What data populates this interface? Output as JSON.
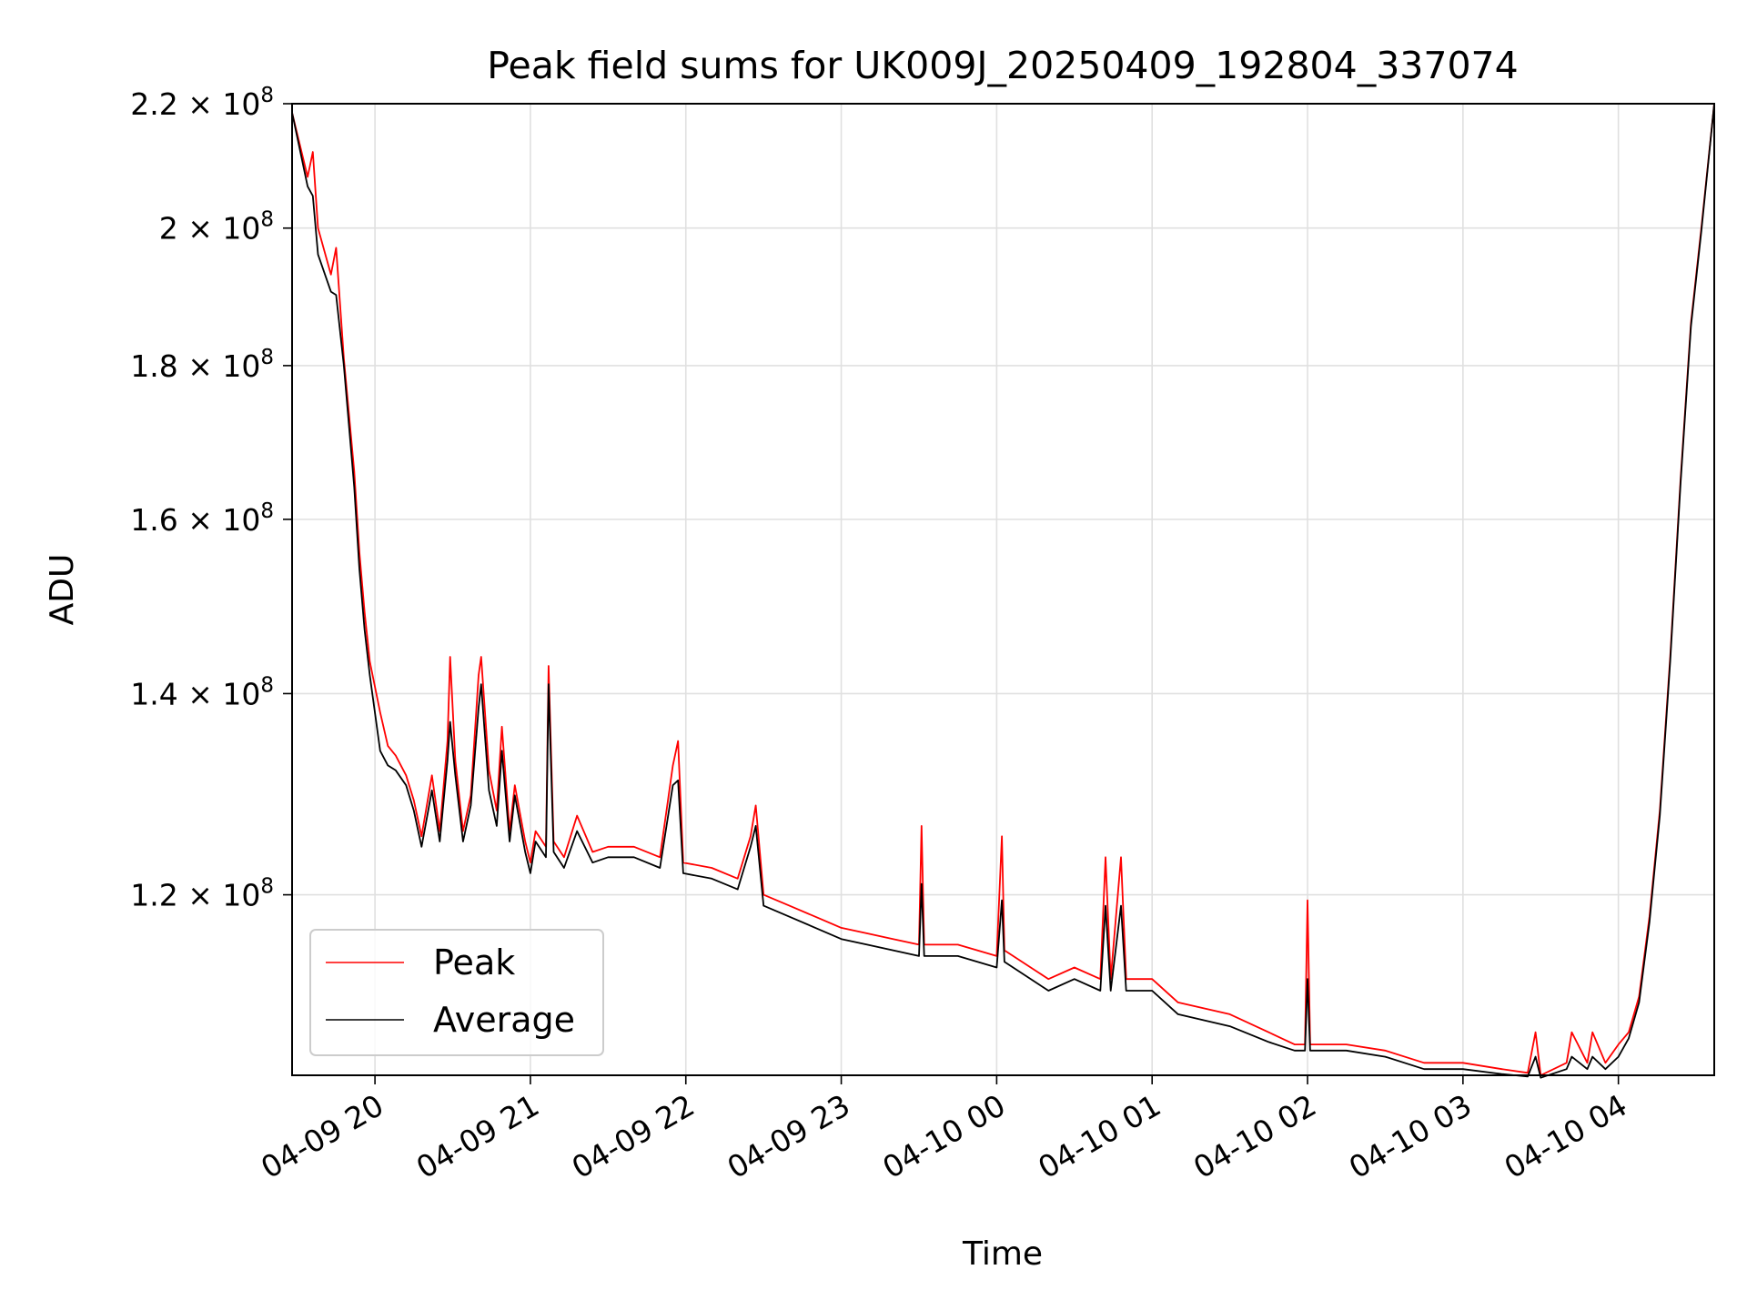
{
  "chart_data": {
    "type": "line",
    "title": "Peak field sums for UK009J_20250409_192804_337074",
    "xlabel": "Time",
    "ylabel": "ADU",
    "yscale": "log",
    "grid": true,
    "legend_position": "lower-left",
    "xlim": [
      "2025-04-09 19:28",
      "2025-04-10 04:37"
    ],
    "ylim": [
      104500000,
      220000000
    ],
    "x_ticks": [
      {
        "t": "2025-04-09 20:00",
        "label": "04-09 20"
      },
      {
        "t": "2025-04-09 21:00",
        "label": "04-09 21"
      },
      {
        "t": "2025-04-09 22:00",
        "label": "04-09 22"
      },
      {
        "t": "2025-04-09 23:00",
        "label": "04-09 23"
      },
      {
        "t": "2025-04-10 00:00",
        "label": "04-10 00"
      },
      {
        "t": "2025-04-10 01:00",
        "label": "04-10 01"
      },
      {
        "t": "2025-04-10 02:00",
        "label": "04-10 02"
      },
      {
        "t": "2025-04-10 03:00",
        "label": "04-10 03"
      },
      {
        "t": "2025-04-10 04:00",
        "label": "04-10 04"
      }
    ],
    "y_ticks": [
      {
        "v": 120000000,
        "mant": "1.2",
        "exp": "8"
      },
      {
        "v": 140000000,
        "mant": "1.4",
        "exp": "8"
      },
      {
        "v": 160000000,
        "mant": "1.6",
        "exp": "8"
      },
      {
        "v": 180000000,
        "mant": "1.8",
        "exp": "8"
      },
      {
        "v": 200000000,
        "mant": "2",
        "exp": "8"
      },
      {
        "v": 220000000,
        "mant": "2.2",
        "exp": "8"
      }
    ],
    "series": [
      {
        "name": "Peak",
        "color": "#ff0000",
        "points": [
          [
            "2025-04-09 19:28",
            218500000
          ],
          [
            "2025-04-09 19:34",
            208000000
          ],
          [
            "2025-04-09 19:36",
            212000000
          ],
          [
            "2025-04-09 19:38",
            200000000
          ],
          [
            "2025-04-09 19:43",
            193000000
          ],
          [
            "2025-04-09 19:45",
            197000000
          ],
          [
            "2025-04-09 19:48",
            181000000
          ],
          [
            "2025-04-09 19:52",
            166000000
          ],
          [
            "2025-04-09 19:54",
            156000000
          ],
          [
            "2025-04-09 19:56",
            149000000
          ],
          [
            "2025-04-09 19:58",
            143500000
          ],
          [
            "2025-04-09 20:02",
            138000000
          ],
          [
            "2025-04-09 20:05",
            134500000
          ],
          [
            "2025-04-09 20:08",
            133500000
          ],
          [
            "2025-04-09 20:12",
            131500000
          ],
          [
            "2025-04-09 20:15",
            129000000
          ],
          [
            "2025-04-09 20:18",
            125500000
          ],
          [
            "2025-04-09 20:22",
            131500000
          ],
          [
            "2025-04-09 20:25",
            126000000
          ],
          [
            "2025-04-09 20:28",
            135000000
          ],
          [
            "2025-04-09 20:29",
            144000000
          ],
          [
            "2025-04-09 20:31",
            133000000
          ],
          [
            "2025-04-09 20:34",
            126000000
          ],
          [
            "2025-04-09 20:37",
            129500000
          ],
          [
            "2025-04-09 20:40",
            142000000
          ],
          [
            "2025-04-09 20:41",
            144000000
          ],
          [
            "2025-04-09 20:44",
            132000000
          ],
          [
            "2025-04-09 20:47",
            128000000
          ],
          [
            "2025-04-09 20:49",
            136500000
          ],
          [
            "2025-04-09 20:52",
            126000000
          ],
          [
            "2025-04-09 20:54",
            130500000
          ],
          [
            "2025-04-09 20:58",
            125000000
          ],
          [
            "2025-04-09 21:00",
            123000000
          ],
          [
            "2025-04-09 21:02",
            126000000
          ],
          [
            "2025-04-09 21:06",
            124500000
          ],
          [
            "2025-04-09 21:07",
            143000000
          ],
          [
            "2025-04-09 21:09",
            125000000
          ],
          [
            "2025-04-09 21:13",
            123500000
          ],
          [
            "2025-04-09 21:18",
            127500000
          ],
          [
            "2025-04-09 21:24",
            124000000
          ],
          [
            "2025-04-09 21:30",
            124500000
          ],
          [
            "2025-04-09 21:40",
            124500000
          ],
          [
            "2025-04-09 21:50",
            123500000
          ],
          [
            "2025-04-09 21:55",
            132500000
          ],
          [
            "2025-04-09 21:57",
            135000000
          ],
          [
            "2025-04-09 21:59",
            123000000
          ],
          [
            "2025-04-09 22:10",
            122500000
          ],
          [
            "2025-04-09 22:20",
            121500000
          ],
          [
            "2025-04-09 22:25",
            125500000
          ],
          [
            "2025-04-09 22:27",
            128500000
          ],
          [
            "2025-04-09 22:30",
            120000000
          ],
          [
            "2025-04-09 22:40",
            119000000
          ],
          [
            "2025-04-09 22:50",
            118000000
          ],
          [
            "2025-04-09 23:00",
            117000000
          ],
          [
            "2025-04-09 23:10",
            116500000
          ],
          [
            "2025-04-09 23:20",
            116000000
          ],
          [
            "2025-04-09 23:30",
            115500000
          ],
          [
            "2025-04-09 23:31",
            126500000
          ],
          [
            "2025-04-09 23:32",
            115500000
          ],
          [
            "2025-04-09 23:45",
            115500000
          ],
          [
            "2025-04-10 00:00",
            114500000
          ],
          [
            "2025-04-10 00:02",
            125500000
          ],
          [
            "2025-04-10 00:03",
            115000000
          ],
          [
            "2025-04-10 00:20",
            112500000
          ],
          [
            "2025-04-10 00:30",
            113500000
          ],
          [
            "2025-04-10 00:40",
            112500000
          ],
          [
            "2025-04-10 00:42",
            123500000
          ],
          [
            "2025-04-10 00:44",
            112500000
          ],
          [
            "2025-04-10 00:48",
            123500000
          ],
          [
            "2025-04-10 00:50",
            112500000
          ],
          [
            "2025-04-10 01:00",
            112500000
          ],
          [
            "2025-04-10 01:10",
            110500000
          ],
          [
            "2025-04-10 01:20",
            110000000
          ],
          [
            "2025-04-10 01:30",
            109500000
          ],
          [
            "2025-04-10 01:45",
            108000000
          ],
          [
            "2025-04-10 01:55",
            107000000
          ],
          [
            "2025-04-10 01:59",
            107000000
          ],
          [
            "2025-04-10 02:00",
            119500000
          ],
          [
            "2025-04-10 02:01",
            107000000
          ],
          [
            "2025-04-10 02:15",
            107000000
          ],
          [
            "2025-04-10 02:30",
            106500000
          ],
          [
            "2025-04-10 02:45",
            105500000
          ],
          [
            "2025-04-10 03:00",
            105500000
          ],
          [
            "2025-04-10 03:15",
            105000000
          ],
          [
            "2025-04-10 03:25",
            104700000
          ],
          [
            "2025-04-10 03:28",
            108000000
          ],
          [
            "2025-04-10 03:30",
            104500000
          ],
          [
            "2025-04-10 03:40",
            105500000
          ],
          [
            "2025-04-10 03:42",
            108000000
          ],
          [
            "2025-04-10 03:48",
            105500000
          ],
          [
            "2025-04-10 03:50",
            108000000
          ],
          [
            "2025-04-10 03:55",
            105500000
          ],
          [
            "2025-04-10 04:00",
            107000000
          ],
          [
            "2025-04-10 04:04",
            108000000
          ],
          [
            "2025-04-10 04:08",
            111000000
          ],
          [
            "2025-04-10 04:12",
            118000000
          ],
          [
            "2025-04-10 04:16",
            128000000
          ],
          [
            "2025-04-10 04:20",
            144000000
          ],
          [
            "2025-04-10 04:24",
            165000000
          ],
          [
            "2025-04-10 04:28",
            186000000
          ],
          [
            "2025-04-10 04:32",
            200000000
          ],
          [
            "2025-04-10 04:37",
            220000000
          ]
        ]
      },
      {
        "name": "Average",
        "color": "#000000",
        "points": [
          [
            "2025-04-09 19:28",
            218500000
          ],
          [
            "2025-04-09 19:34",
            206500000
          ],
          [
            "2025-04-09 19:36",
            205000000
          ],
          [
            "2025-04-09 19:38",
            196000000
          ],
          [
            "2025-04-09 19:43",
            190500000
          ],
          [
            "2025-04-09 19:45",
            190000000
          ],
          [
            "2025-04-09 19:48",
            180000000
          ],
          [
            "2025-04-09 19:52",
            164000000
          ],
          [
            "2025-04-09 19:54",
            154000000
          ],
          [
            "2025-04-09 19:56",
            147000000
          ],
          [
            "2025-04-09 19:58",
            142000000
          ],
          [
            "2025-04-09 20:02",
            134000000
          ],
          [
            "2025-04-09 20:05",
            132500000
          ],
          [
            "2025-04-09 20:08",
            132000000
          ],
          [
            "2025-04-09 20:12",
            130500000
          ],
          [
            "2025-04-09 20:15",
            128000000
          ],
          [
            "2025-04-09 20:18",
            124500000
          ],
          [
            "2025-04-09 20:22",
            130000000
          ],
          [
            "2025-04-09 20:25",
            125000000
          ],
          [
            "2025-04-09 20:28",
            133000000
          ],
          [
            "2025-04-09 20:29",
            137000000
          ],
          [
            "2025-04-09 20:31",
            131500000
          ],
          [
            "2025-04-09 20:34",
            125000000
          ],
          [
            "2025-04-09 20:37",
            128500000
          ],
          [
            "2025-04-09 20:40",
            138500000
          ],
          [
            "2025-04-09 20:41",
            141000000
          ],
          [
            "2025-04-09 20:44",
            130000000
          ],
          [
            "2025-04-09 20:47",
            126500000
          ],
          [
            "2025-04-09 20:49",
            134000000
          ],
          [
            "2025-04-09 20:52",
            125000000
          ],
          [
            "2025-04-09 20:54",
            129500000
          ],
          [
            "2025-04-09 20:58",
            124000000
          ],
          [
            "2025-04-09 21:00",
            122000000
          ],
          [
            "2025-04-09 21:02",
            125000000
          ],
          [
            "2025-04-09 21:06",
            123500000
          ],
          [
            "2025-04-09 21:07",
            141000000
          ],
          [
            "2025-04-09 21:09",
            124000000
          ],
          [
            "2025-04-09 21:13",
            122500000
          ],
          [
            "2025-04-09 21:18",
            126000000
          ],
          [
            "2025-04-09 21:24",
            123000000
          ],
          [
            "2025-04-09 21:30",
            123500000
          ],
          [
            "2025-04-09 21:40",
            123500000
          ],
          [
            "2025-04-09 21:50",
            122500000
          ],
          [
            "2025-04-09 21:55",
            130500000
          ],
          [
            "2025-04-09 21:57",
            131000000
          ],
          [
            "2025-04-09 21:59",
            122000000
          ],
          [
            "2025-04-09 22:10",
            121500000
          ],
          [
            "2025-04-09 22:20",
            120500000
          ],
          [
            "2025-04-09 22:25",
            124500000
          ],
          [
            "2025-04-09 22:27",
            126500000
          ],
          [
            "2025-04-09 22:30",
            119000000
          ],
          [
            "2025-04-09 22:40",
            118000000
          ],
          [
            "2025-04-09 22:50",
            117000000
          ],
          [
            "2025-04-09 23:00",
            116000000
          ],
          [
            "2025-04-09 23:10",
            115500000
          ],
          [
            "2025-04-09 23:20",
            115000000
          ],
          [
            "2025-04-09 23:30",
            114500000
          ],
          [
            "2025-04-09 23:31",
            121000000
          ],
          [
            "2025-04-09 23:32",
            114500000
          ],
          [
            "2025-04-09 23:45",
            114500000
          ],
          [
            "2025-04-10 00:00",
            113500000
          ],
          [
            "2025-04-10 00:02",
            119500000
          ],
          [
            "2025-04-10 00:03",
            114000000
          ],
          [
            "2025-04-10 00:20",
            111500000
          ],
          [
            "2025-04-10 00:30",
            112500000
          ],
          [
            "2025-04-10 00:40",
            111500000
          ],
          [
            "2025-04-10 00:42",
            119000000
          ],
          [
            "2025-04-10 00:44",
            111500000
          ],
          [
            "2025-04-10 00:48",
            119000000
          ],
          [
            "2025-04-10 00:50",
            111500000
          ],
          [
            "2025-04-10 01:00",
            111500000
          ],
          [
            "2025-04-10 01:10",
            109500000
          ],
          [
            "2025-04-10 01:20",
            109000000
          ],
          [
            "2025-04-10 01:30",
            108500000
          ],
          [
            "2025-04-10 01:45",
            107200000
          ],
          [
            "2025-04-10 01:55",
            106500000
          ],
          [
            "2025-04-10 01:59",
            106500000
          ],
          [
            "2025-04-10 02:00",
            112500000
          ],
          [
            "2025-04-10 02:01",
            106500000
          ],
          [
            "2025-04-10 02:15",
            106500000
          ],
          [
            "2025-04-10 02:30",
            106000000
          ],
          [
            "2025-04-10 02:45",
            105000000
          ],
          [
            "2025-04-10 03:00",
            105000000
          ],
          [
            "2025-04-10 03:15",
            104600000
          ],
          [
            "2025-04-10 03:25",
            104400000
          ],
          [
            "2025-04-10 03:28",
            106000000
          ],
          [
            "2025-04-10 03:30",
            104300000
          ],
          [
            "2025-04-10 03:40",
            105000000
          ],
          [
            "2025-04-10 03:42",
            106000000
          ],
          [
            "2025-04-10 03:48",
            105000000
          ],
          [
            "2025-04-10 03:50",
            106000000
          ],
          [
            "2025-04-10 03:55",
            105000000
          ],
          [
            "2025-04-10 04:00",
            106000000
          ],
          [
            "2025-04-10 04:04",
            107500000
          ],
          [
            "2025-04-10 04:08",
            110500000
          ],
          [
            "2025-04-10 04:12",
            117500000
          ],
          [
            "2025-04-10 04:16",
            127500000
          ],
          [
            "2025-04-10 04:20",
            143500000
          ],
          [
            "2025-04-10 04:24",
            164500000
          ],
          [
            "2025-04-10 04:28",
            185500000
          ],
          [
            "2025-04-10 04:32",
            199500000
          ],
          [
            "2025-04-10 04:37",
            220000000
          ]
        ]
      }
    ]
  }
}
